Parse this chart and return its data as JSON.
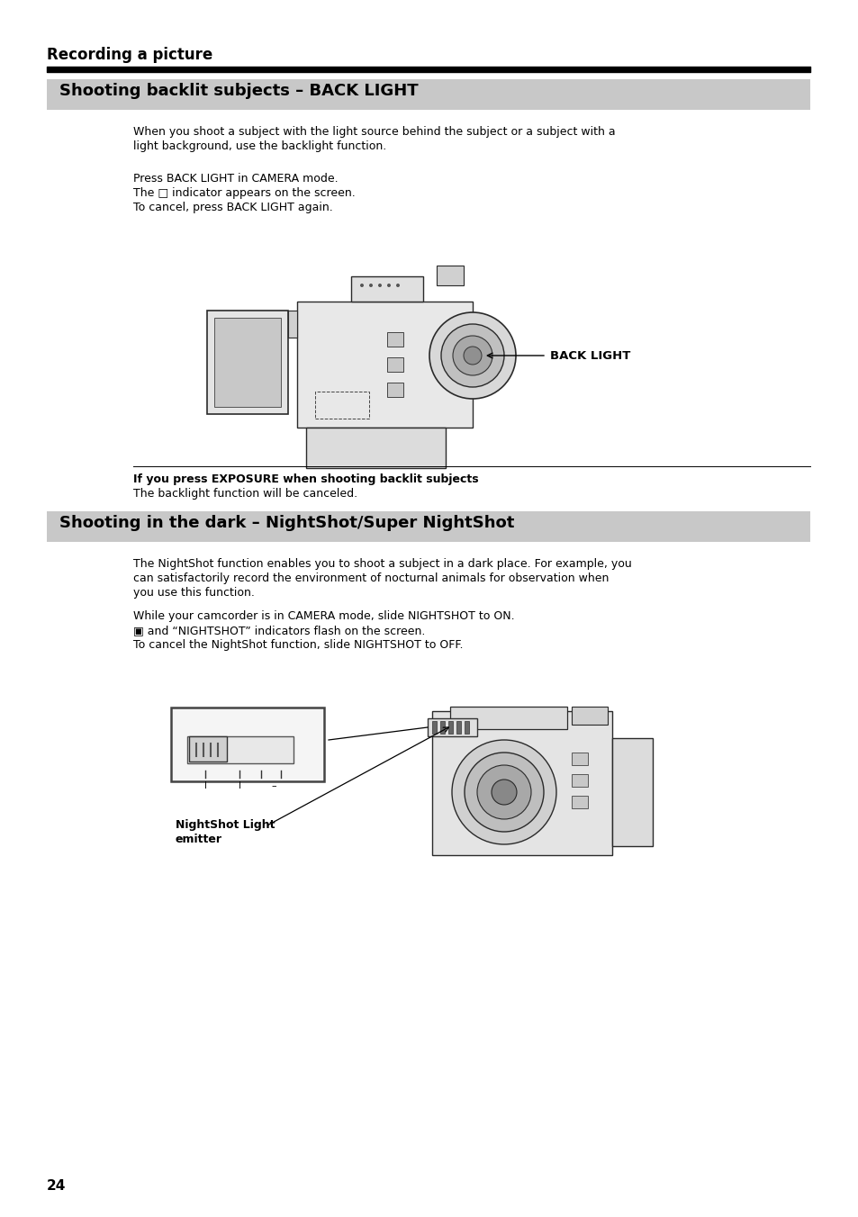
{
  "page_bg": "#ffffff",
  "page_number": "24",
  "section_title": "Recording a picture",
  "divider_color": "#000000",
  "header1_text": "Shooting backlit subjects – BACK LIGHT",
  "header1_bg": "#c8c8c8",
  "header2_text": "Shooting in the dark – NightShot/Super NightShot",
  "header2_bg": "#c8c8c8",
  "body_color": "#000000",
  "para1_line1": "When you shoot a subject with the light source behind the subject or a subject with a",
  "para1_line2": "light background, use the backlight function.",
  "para2_line1": "Press BACK LIGHT in CAMERA mode.",
  "para2_line2": "The □ indicator appears on the screen.",
  "para2_line3": "To cancel, press BACK LIGHT again.",
  "backlight_label": "BACK LIGHT",
  "note_bold": "If you press EXPOSURE when shooting backlit subjects",
  "note_body": "The backlight function will be canceled.",
  "para3_line1": "The NightShot function enables you to shoot a subject in a dark place. For example, you",
  "para3_line2": "can satisfactorily record the environment of nocturnal animals for observation when",
  "para3_line3": "you use this function.",
  "para4_line1": "While your camcorder is in CAMERA mode, slide NIGHTSHOT to ON.",
  "para4_line2": "▣ and “NIGHTSHOT” indicators flash on the screen.",
  "para4_line3": "To cancel the NightShot function, slide NIGHTSHOT to OFF.",
  "nightshot_label_line1": "NightShot Light",
  "nightshot_label_line2": "emitter"
}
